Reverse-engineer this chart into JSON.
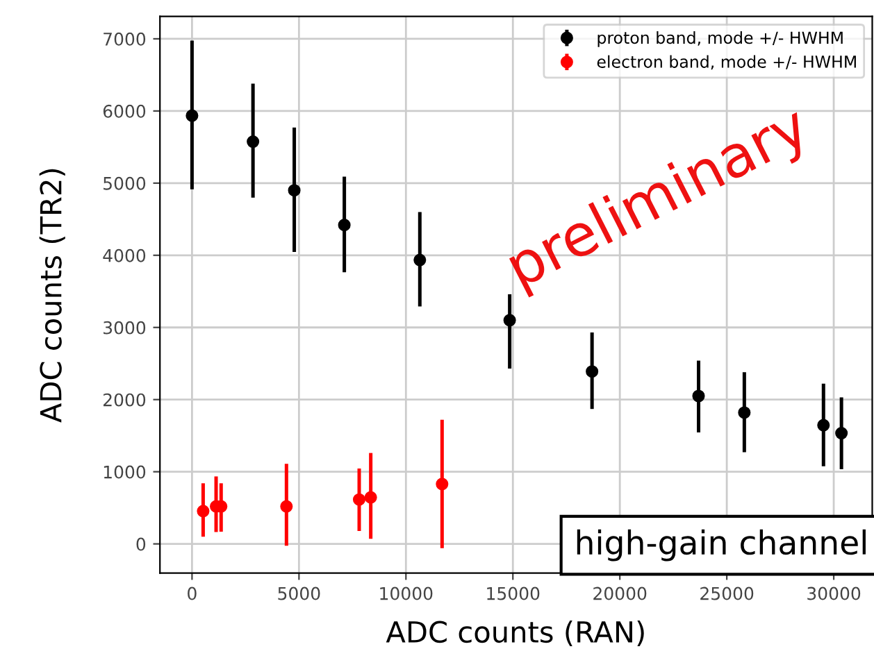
{
  "chart_data": {
    "type": "scatter",
    "xlabel": "ADC counts (RAN)",
    "ylabel": "ADC counts (TR2)",
    "xlim": [
      -1500,
      31800
    ],
    "ylim": [
      -405,
      7310
    ],
    "xticks": [
      0,
      5000,
      10000,
      15000,
      20000,
      25000,
      30000
    ],
    "yticks": [
      0,
      1000,
      2000,
      3000,
      4000,
      5000,
      6000,
      7000
    ],
    "grid": true,
    "legend": "top right",
    "marker": "circle",
    "series": [
      {
        "name": "proton band, mode +/- HWHM",
        "color": "#000000",
        "x": [
          0,
          2850,
          4780,
          7120,
          10650,
          14850,
          18700,
          23680,
          25820,
          29520,
          30360
        ],
        "values": [
          5935,
          5575,
          4900,
          4420,
          3935,
          3100,
          2390,
          2050,
          1820,
          1645,
          1535
        ],
        "errors": [
          [
            4915,
            6975
          ],
          [
            4800,
            6380
          ],
          [
            4045,
            5770
          ],
          [
            3765,
            5090
          ],
          [
            3290,
            4600
          ],
          [
            2430,
            3460
          ],
          [
            1870,
            2930
          ],
          [
            1545,
            2540
          ],
          [
            1270,
            2380
          ],
          [
            1075,
            2220
          ],
          [
            1035,
            2030
          ]
        ]
      },
      {
        "name": "electron band, mode +/- HWHM",
        "color": "#ff0000",
        "x": [
          520,
          1125,
          1360,
          4415,
          7815,
          8355,
          11690
        ],
        "values": [
          455,
          520,
          520,
          520,
          615,
          645,
          830
        ],
        "errors": [
          [
            100,
            840
          ],
          [
            165,
            935
          ],
          [
            170,
            840
          ],
          [
            -25,
            1110
          ],
          [
            180,
            1045
          ],
          [
            70,
            1260
          ],
          [
            -60,
            1720
          ]
        ]
      }
    ],
    "annotations": [
      "preliminary",
      "high-gain channel"
    ]
  }
}
